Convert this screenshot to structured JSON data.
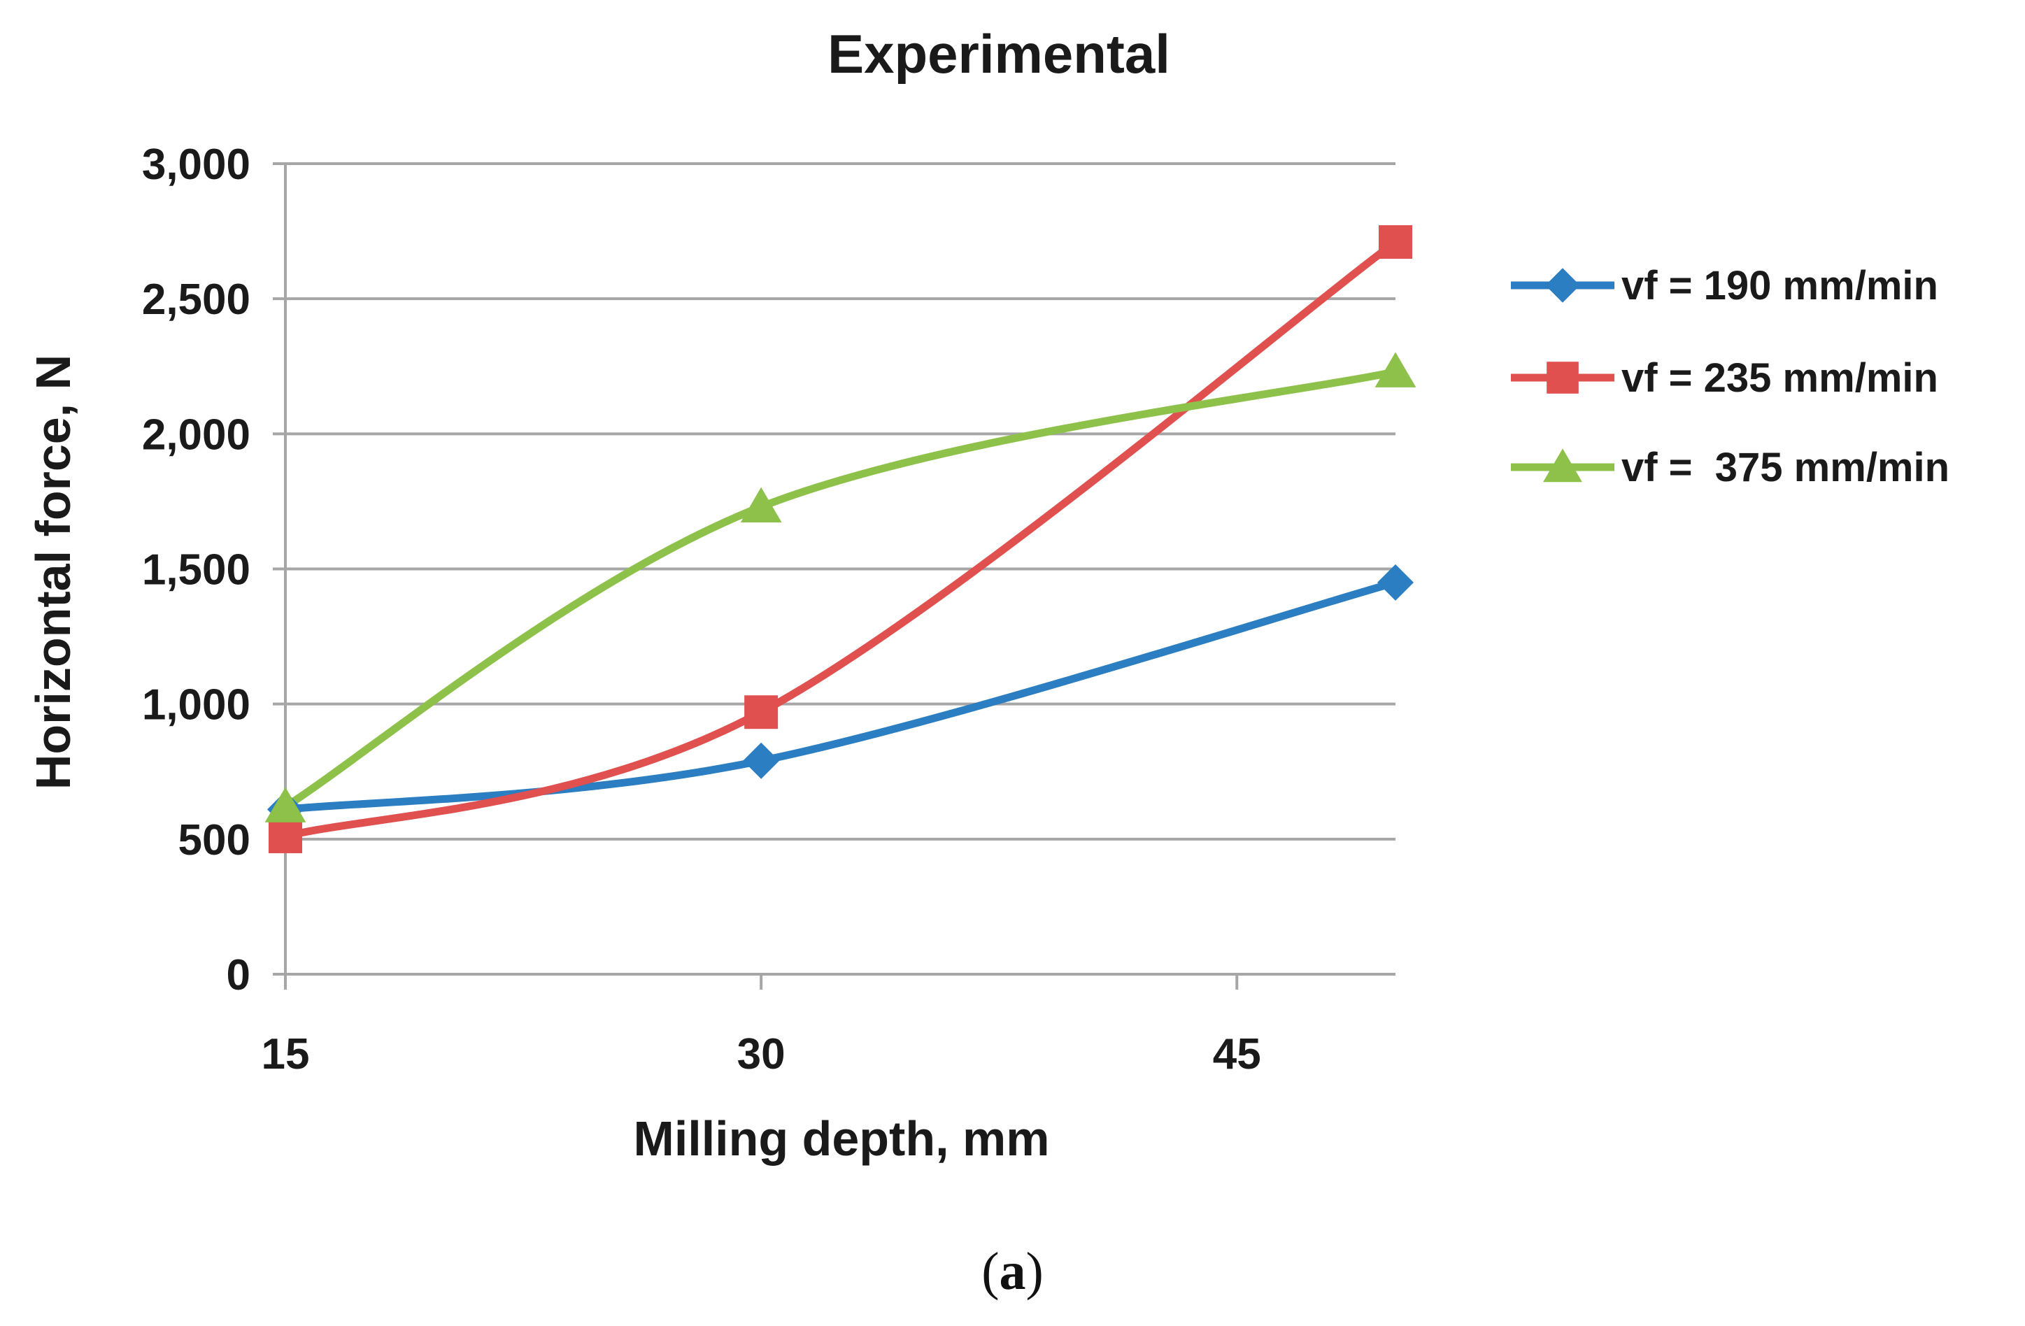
{
  "chart_data": {
    "type": "line",
    "title": "Experimental",
    "xlabel": "Milling depth, mm",
    "ylabel": "Horizontal force, N",
    "x": [
      15,
      30,
      50
    ],
    "x_ticks": [
      "15",
      "30",
      "45"
    ],
    "x_tick_values": [
      15,
      30,
      45
    ],
    "xlim": [
      15,
      50
    ],
    "ylim": [
      0,
      3000
    ],
    "y_ticks": [
      "0",
      "500",
      "1,000",
      "1,500",
      "2,000",
      "2,500",
      "3,000"
    ],
    "y_tick_values": [
      0,
      500,
      1000,
      1500,
      2000,
      2500,
      3000
    ],
    "grid": true,
    "legend_position": "right",
    "series": [
      {
        "name": "vf = 190 mm/min",
        "values": [
          610,
          790,
          1450
        ],
        "color": "#2b7ec1",
        "marker": "diamond"
      },
      {
        "name": "vf = 235 mm/min",
        "values": [
          510,
          970,
          2710
        ],
        "color": "#e0504f",
        "marker": "square"
      },
      {
        "name": "vf =  375 mm/min",
        "values": [
          620,
          1730,
          2230
        ],
        "color": "#8dc14a",
        "marker": "triangle"
      }
    ]
  },
  "caption": {
    "open": "(",
    "letter": "a",
    "close": ")"
  }
}
